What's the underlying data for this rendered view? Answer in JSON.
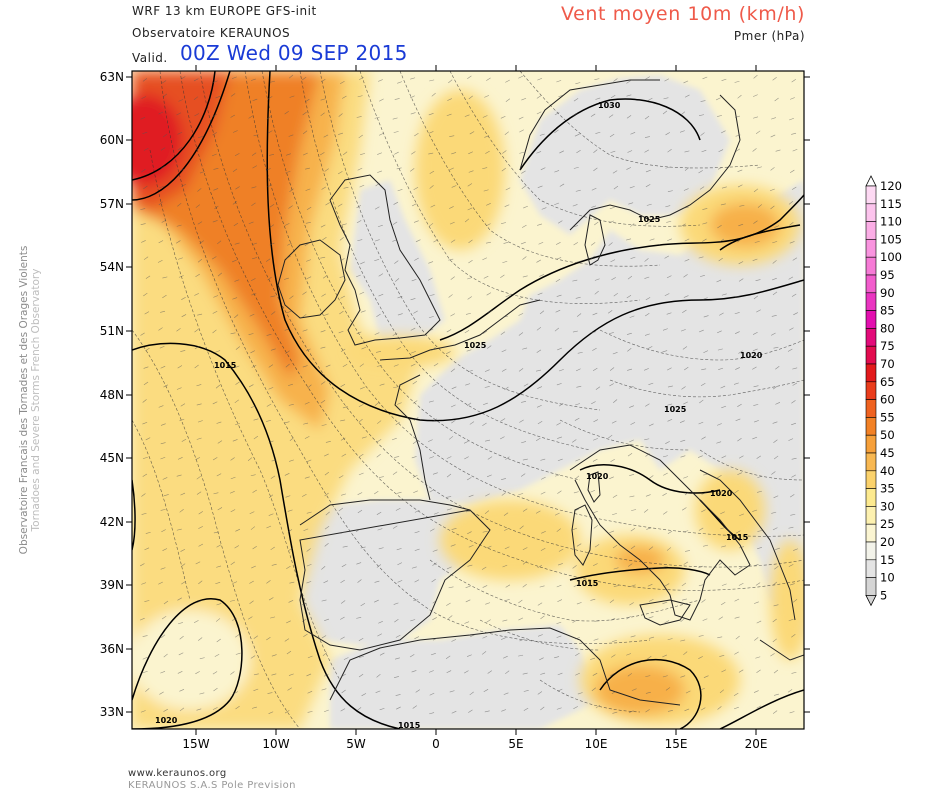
{
  "header": {
    "model": "WRF 13 km EUROPE   GFS-init",
    "observatory": "Observatoire KERAUNOS",
    "valid_label": "Valid.",
    "valid_date": "00Z Wed 09 SEP 2015",
    "variable": "Vent moyen 10m (km/h)",
    "pressure_label": "Pmer (hPa)"
  },
  "side_credit": {
    "line1": "Observatoire Francais des Tornades et des Orages Violents",
    "line2": "Tornadoes and Severe Storms French Observatory"
  },
  "map": {
    "lat_labels": [
      "63N",
      "60N",
      "57N",
      "54N",
      "51N",
      "48N",
      "45N",
      "42N",
      "39N",
      "36N",
      "33N"
    ],
    "lon_labels": [
      "15W",
      "10W",
      "5W",
      "0",
      "5E",
      "10E",
      "15E",
      "20E"
    ],
    "isobar_labels": [
      "1030",
      "1025",
      "1025",
      "1025",
      "1020",
      "1015",
      "1025",
      "1020",
      "1020",
      "1015",
      "1015",
      "1020",
      "1015"
    ],
    "colors": {
      "land_gray": "#e4e4e4",
      "sea_pale": "#fbf4cf",
      "yellow": "#fbd978",
      "light_orange": "#f7b04a",
      "orange": "#ef8028",
      "deep_orange": "#e65020",
      "red": "#e01a20"
    }
  },
  "colorbar": {
    "labels": [
      "120",
      "115",
      "110",
      "105",
      "100",
      "95",
      "90",
      "85",
      "80",
      "75",
      "70",
      "65",
      "60",
      "55",
      "50",
      "45",
      "40",
      "35",
      "30",
      "25",
      "20",
      "15",
      "10",
      "5"
    ],
    "colors": [
      "#ffffff",
      "#fdd9f3",
      "#fcc4ed",
      "#fbaee6",
      "#f994df",
      "#f67bd6",
      "#f25dcd",
      "#ea35c1",
      "#e30faf",
      "#e30b7a",
      "#e30c4f",
      "#e31a1c",
      "#ea3d1c",
      "#ef6220",
      "#f28125",
      "#f6a03a",
      "#f8b852",
      "#fbd26c",
      "#fdea8f",
      "#fdf1b0",
      "#fbf5d2",
      "#f3f3ea",
      "#e4e4e4",
      "#d5d5d5"
    ]
  },
  "footer": {
    "url": "www.keraunos.org",
    "company": "KERAUNOS S.A.S Pole Prevision"
  }
}
